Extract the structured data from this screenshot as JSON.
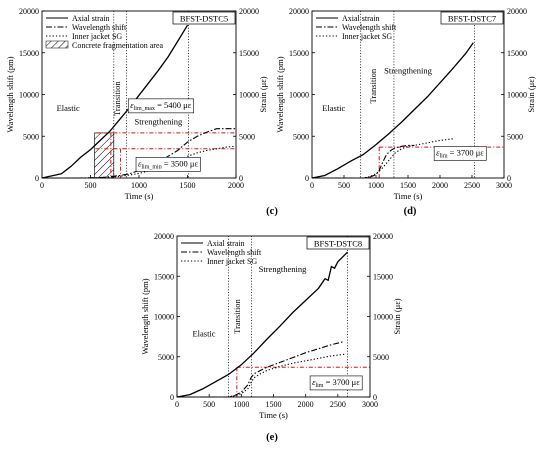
{
  "chart_data": [
    {
      "type": "line",
      "id": "c",
      "panel_label": "(c)",
      "box_label": "BFST-DSTC5",
      "xlabel": "Time (s)",
      "ylabel": "Wavelength shift (pm)",
      "y2label": "Strain (με)",
      "xlim": [
        0,
        2000
      ],
      "ylim": [
        0,
        20000
      ],
      "y2lim": [
        0,
        20000
      ],
      "xticks": [
        0,
        500,
        1000,
        1500,
        2000
      ],
      "yticks": [
        0,
        5000,
        10000,
        15000,
        20000
      ],
      "y2ticks": [
        0,
        5000,
        10000,
        15000,
        20000
      ],
      "legend": [
        {
          "label": "Axial strain",
          "style": "solid"
        },
        {
          "label": "Wavelength shift",
          "style": "dashdot"
        },
        {
          "label": "Inner jacket SG",
          "style": "dotted"
        },
        {
          "label": "Concrete fragmentation area",
          "style": "hatch"
        }
      ],
      "series": [
        {
          "name": "Axial strain",
          "style": "solid",
          "x": [
            0,
            100,
            200,
            300,
            400,
            500,
            600,
            700,
            800,
            900,
            1000,
            1100,
            1200,
            1300,
            1400,
            1500
          ],
          "y": [
            0,
            250,
            500,
            1400,
            2500,
            3400,
            4500,
            5600,
            7000,
            8400,
            9900,
            11400,
            12900,
            14500,
            16400,
            18300
          ]
        },
        {
          "name": "Wavelength shift",
          "style": "dashdot",
          "x": [
            0,
            400,
            600,
            700,
            800,
            900,
            1000,
            1100,
            1200,
            1300,
            1400,
            1500,
            1600,
            1700,
            1800,
            1900,
            2000
          ],
          "y": [
            0,
            0,
            50,
            150,
            300,
            500,
            900,
            1300,
            1900,
            2600,
            3300,
            4300,
            5000,
            5500,
            5900,
            5900,
            5900
          ]
        },
        {
          "name": "Inner jacket SG",
          "style": "dotted",
          "x": [
            0,
            500,
            700,
            800,
            900,
            1000,
            1100,
            1200,
            1300,
            1400,
            1500,
            1600,
            1700,
            1800,
            1900,
            2000
          ],
          "y": [
            0,
            0,
            100,
            200,
            350,
            550,
            850,
            1200,
            1600,
            2100,
            2600,
            3000,
            3300,
            3500,
            3700,
            3800
          ]
        }
      ],
      "vlines": [
        740,
        870,
        1510
      ],
      "stage_labels": [
        {
          "text": "Elastic",
          "x": 270,
          "y": 8000
        },
        {
          "text": "Transition",
          "x": 805,
          "y": 9500,
          "rotate": true
        },
        {
          "text": "Strengthening",
          "x": 1200,
          "y": 6400
        }
      ],
      "hatch_region": {
        "x0": 540,
        "x1": 740,
        "y0": 0,
        "y1": 5400
      },
      "red_hlines": [
        5400,
        3500
      ],
      "red_x_from": 550,
      "red_corners": [
        [
          710,
          5400
        ],
        [
          810,
          3500
        ]
      ],
      "annotations": [
        {
          "main": "ε",
          "sub": "lim_max",
          "text": " = 5400 με",
          "x": 910,
          "y": 8400
        },
        {
          "main": "ε",
          "sub": "lim_min",
          "text": " = 3500 με",
          "x": 990,
          "y": 1400
        }
      ]
    },
    {
      "type": "line",
      "id": "d",
      "panel_label": "(d)",
      "box_label": "BFST-DSTC7",
      "xlabel": "Time (s)",
      "ylabel": "Wavelength shift (pm)",
      "y2label": "Strain (με)",
      "xlim": [
        0,
        3000
      ],
      "ylim": [
        0,
        20000
      ],
      "y2lim": [
        0,
        20000
      ],
      "xticks": [
        0,
        500,
        1000,
        1500,
        2000,
        2500,
        3000
      ],
      "yticks": [
        0,
        5000,
        10000,
        15000,
        20000
      ],
      "y2ticks": [
        0,
        5000,
        10000,
        15000,
        20000
      ],
      "legend": [
        {
          "label": "Axial strain",
          "style": "solid"
        },
        {
          "label": "Wavelength shift",
          "style": "dashdot"
        },
        {
          "label": "Inner jacket SG",
          "style": "dotted"
        }
      ],
      "series": [
        {
          "name": "Axial strain",
          "style": "solid",
          "x": [
            0,
            200,
            400,
            600,
            800,
            1000,
            1200,
            1400,
            1600,
            1800,
            2000,
            2200,
            2400,
            2520
          ],
          "y": [
            0,
            300,
            1100,
            2000,
            2800,
            4000,
            5300,
            6700,
            8200,
            9700,
            11400,
            13100,
            14900,
            16200
          ]
        },
        {
          "name": "Wavelength shift",
          "style": "dashdot",
          "x": [
            0,
            800,
            900,
            1000,
            1050,
            1100,
            1150,
            1200,
            1250,
            1300,
            1400,
            1500,
            1600
          ],
          "y": [
            0,
            0,
            100,
            400,
            900,
            1800,
            2600,
            3100,
            3400,
            3600,
            3800,
            3900,
            3900
          ]
        },
        {
          "name": "Inner jacket SG",
          "style": "dotted",
          "x": [
            0,
            800,
            900,
            1000,
            1100,
            1200,
            1300,
            1400,
            1500,
            1600,
            1800,
            2000,
            2200
          ],
          "y": [
            0,
            0,
            150,
            500,
            1200,
            2100,
            3000,
            3500,
            3800,
            3900,
            4200,
            4500,
            4700
          ]
        }
      ],
      "vlines": [
        760,
        1280,
        2540
      ],
      "stage_labels": [
        {
          "text": "Elastic",
          "x": 340,
          "y": 8000
        },
        {
          "text": "Transition",
          "x": 1000,
          "y": 11000,
          "rotate": true
        },
        {
          "text": "Strengthening",
          "x": 1500,
          "y": 12500
        }
      ],
      "red_hlines": [
        3700
      ],
      "red_x_from": 1050,
      "red_corners": [
        [
          1050,
          3700
        ]
      ],
      "annotations": [
        {
          "main": "ε",
          "sub": "lim",
          "text": " = 3700 με",
          "x": 1940,
          "y": 2700
        }
      ]
    },
    {
      "type": "line",
      "id": "e",
      "panel_label": "(e)",
      "box_label": "BFST-DSTC8",
      "xlabel": "Time (s)",
      "ylabel": "Wavelength shift (pm)",
      "y2label": "Strain (με)",
      "xlim": [
        0,
        3000
      ],
      "ylim": [
        0,
        20000
      ],
      "y2lim": [
        0,
        20000
      ],
      "xticks": [
        0,
        500,
        1000,
        1500,
        2000,
        2500,
        3000
      ],
      "yticks": [
        0,
        5000,
        10000,
        15000,
        20000
      ],
      "y2ticks": [
        0,
        5000,
        10000,
        15000,
        20000
      ],
      "legend": [
        {
          "label": "Axial strain",
          "style": "solid"
        },
        {
          "label": "Wavelength shift",
          "style": "dashdot"
        },
        {
          "label": "Inner jacket SG",
          "style": "dotted"
        }
      ],
      "series": [
        {
          "name": "Axial strain",
          "style": "solid",
          "x": [
            0,
            200,
            400,
            600,
            800,
            1000,
            1200,
            1400,
            1600,
            1800,
            2000,
            2200,
            2300,
            2350,
            2400,
            2450,
            2500,
            2600,
            2650
          ],
          "y": [
            0,
            300,
            1000,
            1900,
            2800,
            4000,
            5500,
            7200,
            8800,
            10500,
            12000,
            13500,
            14700,
            14500,
            16200,
            16000,
            16800,
            17600,
            18000
          ]
        },
        {
          "name": "Wavelength shift",
          "style": "dashdot",
          "x": [
            0,
            800,
            900,
            1000,
            1100,
            1150,
            1200,
            1300,
            1400,
            1600,
            1800,
            2000,
            2200,
            2400,
            2600
          ],
          "y": [
            0,
            0,
            200,
            600,
            1500,
            2400,
            2900,
            3300,
            3700,
            4300,
            4900,
            5500,
            6000,
            6500,
            6900
          ]
        },
        {
          "name": "Inner jacket SG",
          "style": "dotted",
          "x": [
            0,
            800,
            900,
            1000,
            1100,
            1150,
            1200,
            1300,
            1400,
            1600,
            1800,
            2000,
            2200,
            2400,
            2600
          ],
          "y": [
            0,
            0,
            150,
            400,
            1000,
            1800,
            2400,
            2900,
            3300,
            3800,
            4200,
            4500,
            4800,
            5100,
            5300
          ]
        }
      ],
      "vlines": [
        800,
        1160,
        2650
      ],
      "stage_labels": [
        {
          "text": "Elastic",
          "x": 420,
          "y": 7500
        },
        {
          "text": "Transition",
          "x": 980,
          "y": 10000,
          "rotate": true
        },
        {
          "text": "Strengthening",
          "x": 1640,
          "y": 15500
        }
      ],
      "red_hlines": [
        3700
      ],
      "red_x_from": 930,
      "red_corners": [
        [
          930,
          3700
        ]
      ],
      "annotations": [
        {
          "main": "ε",
          "sub": "lim",
          "text": " = 3700 με",
          "x": 2100,
          "y": 1500
        }
      ]
    }
  ]
}
